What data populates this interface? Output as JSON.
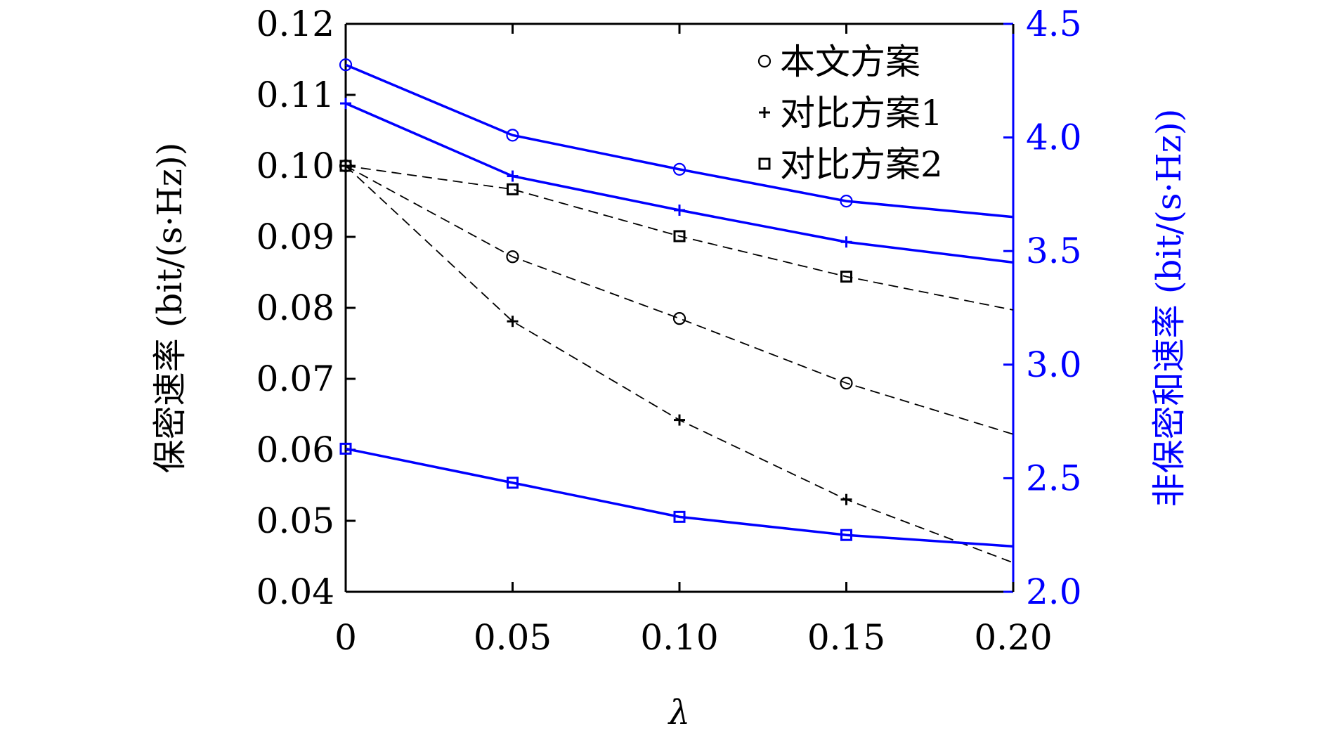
{
  "chart_data": {
    "type": "line",
    "xlabel": "λ",
    "ylabel_left": "保密速率 (bit/(s·Hz))",
    "ylabel_right": "非保密和速率 (bit/(s·Hz))",
    "x": [
      0,
      0.05,
      0.1,
      0.15,
      0.2
    ],
    "x_tick_labels": [
      "0",
      "0.05",
      "0.10",
      "0.15",
      "0.20"
    ],
    "xlim": [
      0,
      0.2
    ],
    "ylim_left": [
      0.04,
      0.12
    ],
    "ylim_right": [
      2.0,
      4.5
    ],
    "y_left_ticks": [
      "0.04",
      "0.05",
      "0.06",
      "0.07",
      "0.08",
      "0.09",
      "0.10",
      "0.11",
      "0.12"
    ],
    "y_right_ticks": [
      "2.0",
      "2.5",
      "3.0",
      "3.5",
      "4.0",
      "4.5"
    ],
    "grid": false,
    "legend_position": "top-right",
    "colors": {
      "left_axis": "#000000",
      "right_axis": "#0000ff"
    },
    "legend": [
      {
        "label": "本文方案",
        "marker": "circle"
      },
      {
        "label": "对比方案1",
        "marker": "plus"
      },
      {
        "label": "对比方案2",
        "marker": "square"
      }
    ],
    "series_left": [
      {
        "marker": "circle",
        "values": [
          0.1,
          0.0872,
          0.0785,
          0.0694,
          0.0622
        ],
        "marker_count": 4
      },
      {
        "marker": "plus",
        "values": [
          0.1,
          0.0781,
          0.0642,
          0.053,
          0.0441
        ],
        "marker_count": 4
      },
      {
        "marker": "square",
        "values": [
          0.1,
          0.0967,
          0.0901,
          0.0844,
          0.0797
        ],
        "marker_count": 4
      }
    ],
    "series_right": [
      {
        "marker": "circle",
        "values": [
          4.32,
          4.01,
          3.86,
          3.72,
          3.65
        ],
        "marker_count": 4
      },
      {
        "marker": "plus",
        "values": [
          4.15,
          3.83,
          3.68,
          3.54,
          3.45
        ],
        "marker_count": 4
      },
      {
        "marker": "square",
        "values": [
          2.63,
          2.48,
          2.33,
          2.25,
          2.2
        ],
        "marker_count": 4
      }
    ]
  }
}
